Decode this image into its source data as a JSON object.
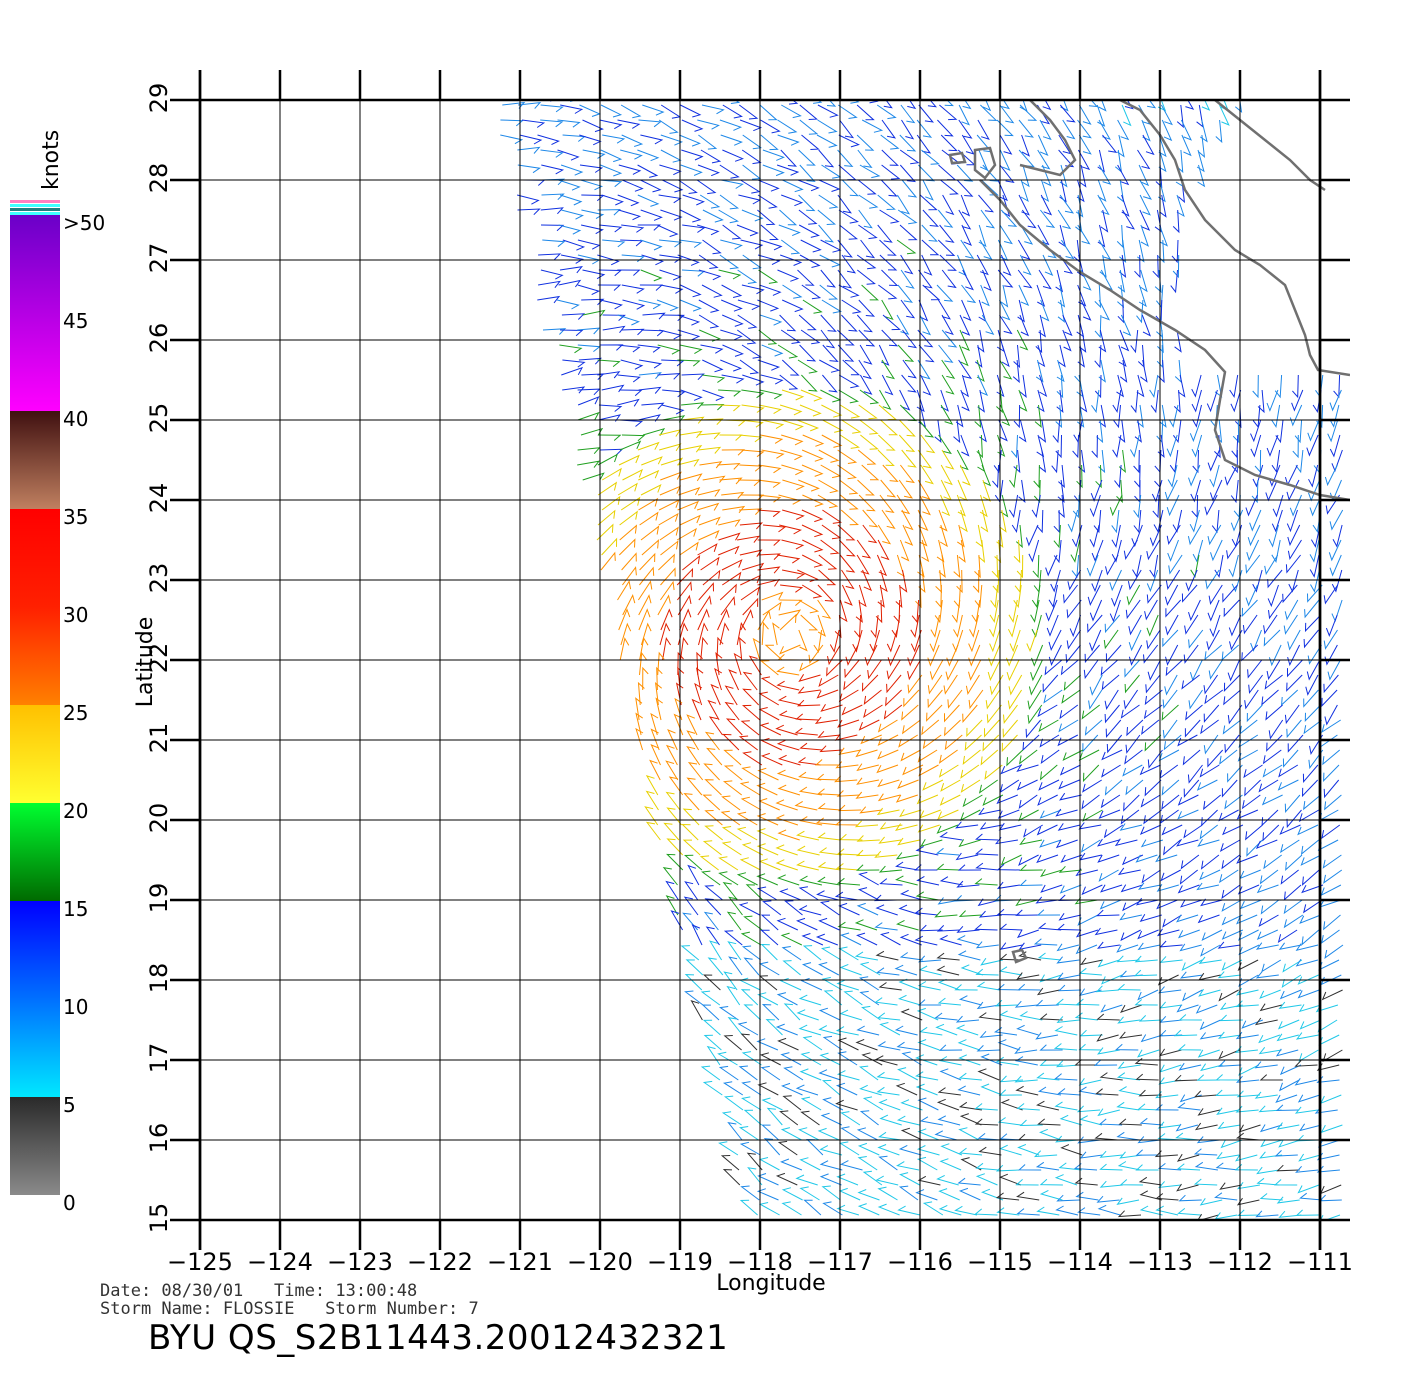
{
  "axes": {
    "xlabel": "Longitude",
    "ylabel": "Latitude",
    "lon_range": [
      -125,
      -111
    ],
    "lat_range": [
      15,
      29
    ],
    "lon_ticks": [
      "−125",
      "−124",
      "−123",
      "−122",
      "−121",
      "−120",
      "−119",
      "−118",
      "−117",
      "−116",
      "−115",
      "−114",
      "−113",
      "−112",
      "−111"
    ],
    "lat_ticks": [
      "15",
      "16",
      "17",
      "18",
      "19",
      "20",
      "21",
      "22",
      "23",
      "24",
      "25",
      "26",
      "27",
      "28",
      "29"
    ],
    "grid": true
  },
  "legend": {
    "title": "knots",
    "labels": [
      ">50",
      "45",
      "40",
      "35",
      "30",
      "25",
      "20",
      "15",
      "10",
      "5",
      "0"
    ],
    "bands": [
      {
        "from": 0,
        "to": 5,
        "colors": [
          "#8a8a8a",
          "#2a2a2a"
        ]
      },
      {
        "from": 5,
        "to": 15,
        "colors": [
          "#00e8ff",
          "#0070ff",
          "#0000ff"
        ]
      },
      {
        "from": 15,
        "to": 20,
        "colors": [
          "#006a00",
          "#00ff30"
        ]
      },
      {
        "from": 20,
        "to": 25,
        "colors": [
          "#ffff30",
          "#ffc000"
        ]
      },
      {
        "from": 25,
        "to": 35,
        "colors": [
          "#ff8000",
          "#ff2000",
          "#ff0000"
        ]
      },
      {
        "from": 35,
        "to": 40,
        "colors": [
          "#c08060",
          "#401010"
        ]
      },
      {
        "from": 40,
        "to": 50,
        "colors": [
          "#ff00ff",
          "#6a00c8"
        ]
      }
    ]
  },
  "storm": {
    "center_lon": -117.6,
    "center_lat": 22.3
  },
  "footer": {
    "line1": "Date: 08/30/01   Time: 13:00:48",
    "line2": "Storm Name: FLOSSIE   Storm Number: 7",
    "file_id": "BYU QS_S2B11443.20012432321"
  }
}
